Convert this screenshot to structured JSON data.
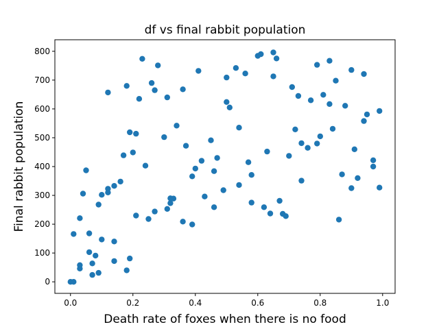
{
  "chart_data": {
    "type": "scatter",
    "title": "df vs final rabbit population",
    "xlabel": "Death rate of foxes when there is no food",
    "ylabel": "Final rabbit population",
    "xlim": [
      -0.05,
      1.04
    ],
    "ylim": [
      -40,
      840
    ],
    "xticks": [
      0.0,
      0.2,
      0.4,
      0.6,
      0.8,
      1.0
    ],
    "xtick_labels": [
      "0.0",
      "0.2",
      "0.4",
      "0.6",
      "0.8",
      "1.0"
    ],
    "yticks": [
      0,
      100,
      200,
      300,
      400,
      500,
      600,
      700,
      800
    ],
    "ytick_labels": [
      "0",
      "100",
      "200",
      "300",
      "400",
      "500",
      "600",
      "700",
      "800"
    ],
    "grid": false,
    "marker_color": "#1f77b4",
    "points": [
      [
        0.0,
        0
      ],
      [
        0.01,
        0
      ],
      [
        0.01,
        166
      ],
      [
        0.03,
        46
      ],
      [
        0.03,
        58
      ],
      [
        0.03,
        221
      ],
      [
        0.04,
        306
      ],
      [
        0.05,
        387
      ],
      [
        0.06,
        168
      ],
      [
        0.06,
        103
      ],
      [
        0.07,
        64
      ],
      [
        0.07,
        24
      ],
      [
        0.08,
        91
      ],
      [
        0.09,
        31
      ],
      [
        0.09,
        268
      ],
      [
        0.1,
        147
      ],
      [
        0.1,
        302
      ],
      [
        0.12,
        310
      ],
      [
        0.12,
        323
      ],
      [
        0.12,
        657
      ],
      [
        0.14,
        333
      ],
      [
        0.14,
        140
      ],
      [
        0.14,
        72
      ],
      [
        0.16,
        348
      ],
      [
        0.17,
        439
      ],
      [
        0.18,
        40
      ],
      [
        0.18,
        680
      ],
      [
        0.19,
        519
      ],
      [
        0.19,
        81
      ],
      [
        0.2,
        449
      ],
      [
        0.21,
        514
      ],
      [
        0.21,
        230
      ],
      [
        0.22,
        635
      ],
      [
        0.23,
        774
      ],
      [
        0.24,
        403
      ],
      [
        0.25,
        218
      ],
      [
        0.26,
        690
      ],
      [
        0.27,
        244
      ],
      [
        0.27,
        665
      ],
      [
        0.28,
        751
      ],
      [
        0.3,
        502
      ],
      [
        0.31,
        253
      ],
      [
        0.31,
        640
      ],
      [
        0.32,
        273
      ],
      [
        0.32,
        290
      ],
      [
        0.33,
        289
      ],
      [
        0.34,
        542
      ],
      [
        0.36,
        668
      ],
      [
        0.36,
        209
      ],
      [
        0.37,
        472
      ],
      [
        0.39,
        366
      ],
      [
        0.39,
        199
      ],
      [
        0.4,
        393
      ],
      [
        0.41,
        732
      ],
      [
        0.42,
        420
      ],
      [
        0.43,
        296
      ],
      [
        0.45,
        491
      ],
      [
        0.46,
        384
      ],
      [
        0.46,
        259
      ],
      [
        0.47,
        430
      ],
      [
        0.49,
        318
      ],
      [
        0.5,
        624
      ],
      [
        0.5,
        709
      ],
      [
        0.51,
        605
      ],
      [
        0.53,
        742
      ],
      [
        0.54,
        535
      ],
      [
        0.54,
        336
      ],
      [
        0.56,
        723
      ],
      [
        0.57,
        415
      ],
      [
        0.58,
        371
      ],
      [
        0.58,
        275
      ],
      [
        0.6,
        784
      ],
      [
        0.61,
        790
      ],
      [
        0.62,
        259
      ],
      [
        0.63,
        452
      ],
      [
        0.64,
        237
      ],
      [
        0.65,
        713
      ],
      [
        0.65,
        796
      ],
      [
        0.66,
        775
      ],
      [
        0.67,
        281
      ],
      [
        0.68,
        236
      ],
      [
        0.69,
        228
      ],
      [
        0.7,
        437
      ],
      [
        0.71,
        676
      ],
      [
        0.72,
        529
      ],
      [
        0.73,
        645
      ],
      [
        0.74,
        481
      ],
      [
        0.74,
        351
      ],
      [
        0.76,
        465
      ],
      [
        0.77,
        630
      ],
      [
        0.79,
        753
      ],
      [
        0.79,
        480
      ],
      [
        0.8,
        505
      ],
      [
        0.81,
        649
      ],
      [
        0.83,
        617
      ],
      [
        0.83,
        767
      ],
      [
        0.84,
        531
      ],
      [
        0.85,
        698
      ],
      [
        0.86,
        216
      ],
      [
        0.87,
        373
      ],
      [
        0.88,
        611
      ],
      [
        0.9,
        735
      ],
      [
        0.9,
        325
      ],
      [
        0.91,
        460
      ],
      [
        0.92,
        360
      ],
      [
        0.94,
        721
      ],
      [
        0.94,
        558
      ],
      [
        0.95,
        581
      ],
      [
        0.97,
        422
      ],
      [
        0.97,
        400
      ],
      [
        0.99,
        593
      ],
      [
        0.99,
        327
      ]
    ]
  }
}
